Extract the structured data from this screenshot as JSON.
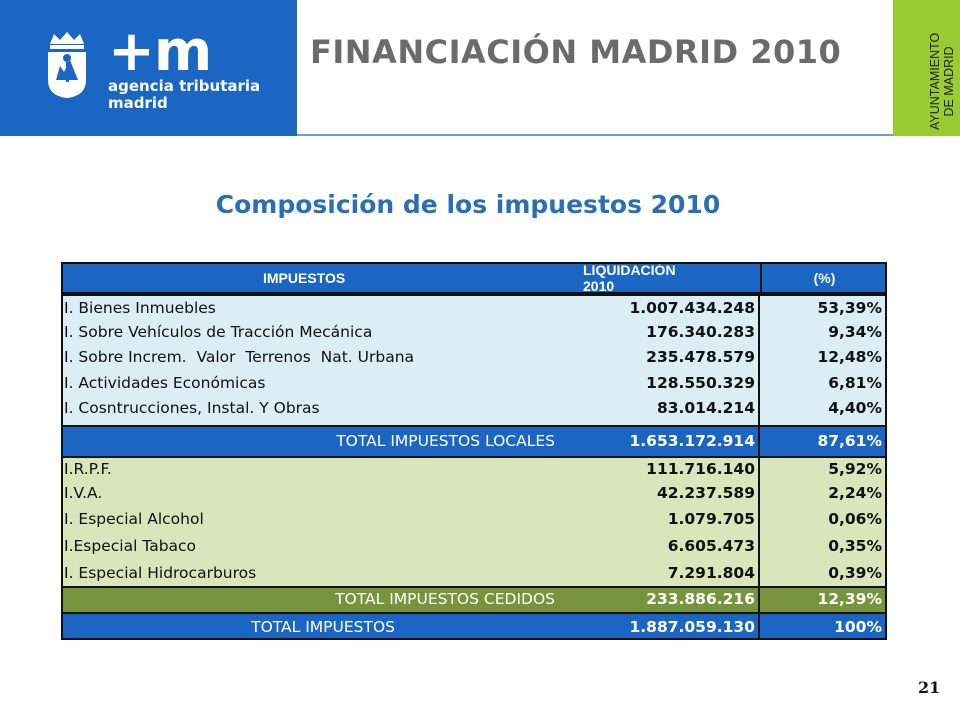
{
  "header": {
    "logo_plus_m": "+m",
    "logo_line1": "agencia tributaria",
    "logo_line2": "madrid",
    "title": "FINANCIACIÓN MADRID 2010",
    "side_tab_line1": "AYUNTAMIENTO",
    "side_tab_line2": "DE MADRID"
  },
  "subtitle": "Composición de los impuestos 2010",
  "table": {
    "headers": {
      "impuestos": "IMPUESTOS",
      "liquidacion": "LIQUIDACIÓN 2010",
      "pct": "(%)"
    },
    "local_rows": [
      {
        "name": "I. Bienes Inmuebles",
        "value": "1.007.434.248",
        "pct": "53,39%"
      },
      {
        "name": "I. Sobre Vehículos de Tracción Mecánica",
        "value": "176.340.283",
        "pct": "9,34%"
      },
      {
        "name": "I. Sobre Increm.  Valor  Terrenos  Nat. Urbana",
        "value": "235.478.579",
        "pct": "12,48%"
      },
      {
        "name": "I. Actividades Económicas",
        "value": "128.550.329",
        "pct": "6,81%"
      },
      {
        "name": "I. Cosntrucciones, Instal. Y Obras",
        "value": "83.014.214",
        "pct": "4,40%"
      }
    ],
    "total_local": {
      "name": "TOTAL IMPUESTOS LOCALES",
      "value": "1.653.172.914",
      "pct": "87,61%"
    },
    "cedidos_rows": [
      {
        "name": "I.R.P.F.",
        "value": "111.716.140",
        "pct": "5,92%"
      },
      {
        "name": "I.V.A.",
        "value": "42.237.589",
        "pct": "2,24%"
      },
      {
        "name": "I. Especial Alcohol",
        "value": "1.079.705",
        "pct": "0,06%"
      },
      {
        "name": "I.Especial Tabaco",
        "value": "6.605.473",
        "pct": "0,35%"
      },
      {
        "name": "I. Especial Hidrocarburos",
        "value": "7.291.804",
        "pct": "0,39%"
      }
    ],
    "total_cedidos": {
      "name": "TOTAL IMPUESTOS CEDIDOS",
      "value": "233.886.216",
      "pct": "12,39%"
    },
    "total": {
      "name": "TOTAL IMPUESTOS",
      "value": "1.887.059.130",
      "pct": "100%"
    }
  },
  "page_number": "21",
  "colors": {
    "brand_blue": "#1a66c2",
    "green": "#99cc33",
    "local_bg": "#dbeef5",
    "cedido_bg": "#d9e5bb",
    "cedido_total": "#77933c"
  }
}
